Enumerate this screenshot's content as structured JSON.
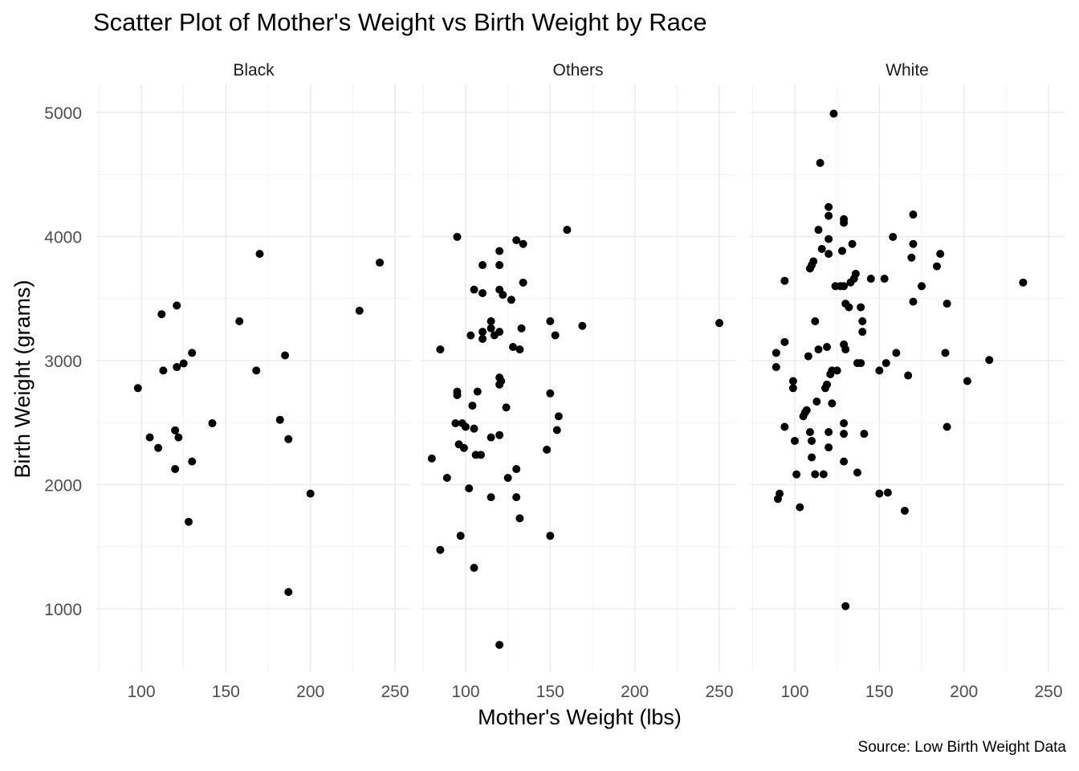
{
  "chart_data": {
    "type": "scatter",
    "title": "Scatter Plot of Mother's Weight vs Birth Weight by Race",
    "xlabel": "Mother's Weight (lbs)",
    "ylabel": "Birth Weight (grams)",
    "caption": "Source: Low Birth Weight Data",
    "xlim": [
      72,
      260
    ],
    "ylim": [
      500,
      5200
    ],
    "xticks": [
      100,
      150,
      200,
      250
    ],
    "yticks": [
      1000,
      2000,
      3000,
      4000,
      5000
    ],
    "grid": true,
    "point_color": "#000000",
    "facets": [
      {
        "name": "Black",
        "points": [
          [
            98,
            2778
          ],
          [
            105,
            2381
          ],
          [
            110,
            2296
          ],
          [
            112,
            3374
          ],
          [
            113,
            2920
          ],
          [
            120,
            2126
          ],
          [
            120,
            2438
          ],
          [
            121,
            2948
          ],
          [
            121,
            3444
          ],
          [
            122,
            2381
          ],
          [
            125,
            2977
          ],
          [
            128,
            1701
          ],
          [
            130,
            3062
          ],
          [
            130,
            2187
          ],
          [
            142,
            2495
          ],
          [
            158,
            3317
          ],
          [
            168,
            2920
          ],
          [
            170,
            3860
          ],
          [
            182,
            2523
          ],
          [
            185,
            3042
          ],
          [
            187,
            2367
          ],
          [
            187,
            1135
          ],
          [
            200,
            1928
          ],
          [
            229,
            3402
          ],
          [
            241,
            3790
          ]
        ]
      },
      {
        "name": "Others",
        "points": [
          [
            80,
            2211
          ],
          [
            85,
            3090
          ],
          [
            85,
            1474
          ],
          [
            89,
            2055
          ],
          [
            94,
            2495
          ],
          [
            95,
            2750
          ],
          [
            95,
            2722
          ],
          [
            95,
            3997
          ],
          [
            96,
            2325
          ],
          [
            97,
            1588
          ],
          [
            98,
            2495
          ],
          [
            99,
            2296
          ],
          [
            100,
            2466
          ],
          [
            102,
            1970
          ],
          [
            103,
            3203
          ],
          [
            104,
            2637
          ],
          [
            105,
            2452
          ],
          [
            105,
            3572
          ],
          [
            105,
            1330
          ],
          [
            106,
            2240
          ],
          [
            107,
            2750
          ],
          [
            109,
            2240
          ],
          [
            110,
            3770
          ],
          [
            110,
            3544
          ],
          [
            110,
            3175
          ],
          [
            110,
            3232
          ],
          [
            115,
            3317
          ],
          [
            115,
            3260
          ],
          [
            115,
            2381
          ],
          [
            115,
            1899
          ],
          [
            117,
            3204
          ],
          [
            120,
            3883
          ],
          [
            120,
            3770
          ],
          [
            120,
            3572
          ],
          [
            120,
            3232
          ],
          [
            120,
            2863
          ],
          [
            120,
            2807
          ],
          [
            120,
            2400
          ],
          [
            120,
            709
          ],
          [
            121,
            2835
          ],
          [
            122,
            3530
          ],
          [
            124,
            2622
          ],
          [
            125,
            2055
          ],
          [
            127,
            3490
          ],
          [
            128,
            3110
          ],
          [
            130,
            3970
          ],
          [
            130,
            2126
          ],
          [
            130,
            1899
          ],
          [
            132,
            3090
          ],
          [
            132,
            1729
          ],
          [
            133,
            3260
          ],
          [
            134,
            3940
          ],
          [
            134,
            3629
          ],
          [
            148,
            2282
          ],
          [
            150,
            3317
          ],
          [
            150,
            2736
          ],
          [
            150,
            1588
          ],
          [
            153,
            3204
          ],
          [
            154,
            2440
          ],
          [
            155,
            2551
          ],
          [
            160,
            4054
          ],
          [
            169,
            3280
          ],
          [
            250,
            3303
          ]
        ]
      },
      {
        "name": "White",
        "points": [
          [
            89,
            3062
          ],
          [
            89,
            2948
          ],
          [
            90,
            1885
          ],
          [
            91,
            1928
          ],
          [
            94,
            3643
          ],
          [
            94,
            3150
          ],
          [
            94,
            2466
          ],
          [
            99,
            2835
          ],
          [
            99,
            2778
          ],
          [
            100,
            2353
          ],
          [
            101,
            2083
          ],
          [
            103,
            1818
          ],
          [
            105,
            2551
          ],
          [
            106,
            2580
          ],
          [
            107,
            2600
          ],
          [
            108,
            3035
          ],
          [
            109,
            3742
          ],
          [
            109,
            2424
          ],
          [
            110,
            3770
          ],
          [
            110,
            2353
          ],
          [
            110,
            2220
          ],
          [
            111,
            3800
          ],
          [
            112,
            3317
          ],
          [
            112,
            2084
          ],
          [
            113,
            2670
          ],
          [
            114,
            3090
          ],
          [
            114,
            4054
          ],
          [
            115,
            4593
          ],
          [
            116,
            3900
          ],
          [
            117,
            2084
          ],
          [
            118,
            2778
          ],
          [
            119,
            2807
          ],
          [
            119,
            3110
          ],
          [
            120,
            4238
          ],
          [
            120,
            4167
          ],
          [
            120,
            3980
          ],
          [
            120,
            3860
          ],
          [
            120,
            2300
          ],
          [
            120,
            2424
          ],
          [
            121,
            2890
          ],
          [
            122,
            2920
          ],
          [
            122,
            2655
          ],
          [
            123,
            4990
          ],
          [
            124,
            3600
          ],
          [
            125,
            2920
          ],
          [
            127,
            3600
          ],
          [
            128,
            3884
          ],
          [
            129,
            4111
          ],
          [
            129,
            4140
          ],
          [
            129,
            3600
          ],
          [
            129,
            3130
          ],
          [
            129,
            2495
          ],
          [
            129,
            2410
          ],
          [
            129,
            2187
          ],
          [
            130,
            1021
          ],
          [
            130,
            3459
          ],
          [
            130,
            3090
          ],
          [
            132,
            3430
          ],
          [
            133,
            3630
          ],
          [
            134,
            3940
          ],
          [
            135,
            3660
          ],
          [
            136,
            3700
          ],
          [
            137,
            2980
          ],
          [
            137,
            2098
          ],
          [
            139,
            2980
          ],
          [
            139,
            3430
          ],
          [
            140,
            3317
          ],
          [
            140,
            3232
          ],
          [
            141,
            2410
          ],
          [
            145,
            3660
          ],
          [
            150,
            2920
          ],
          [
            150,
            1928
          ],
          [
            153,
            3660
          ],
          [
            154,
            2980
          ],
          [
            155,
            1936
          ],
          [
            158,
            3997
          ],
          [
            160,
            3062
          ],
          [
            165,
            1790
          ],
          [
            167,
            2880
          ],
          [
            169,
            3830
          ],
          [
            170,
            4177
          ],
          [
            170,
            3940
          ],
          [
            170,
            3475
          ],
          [
            175,
            3600
          ],
          [
            184,
            3760
          ],
          [
            186,
            3860
          ],
          [
            189,
            3062
          ],
          [
            190,
            3459
          ],
          [
            190,
            2466
          ],
          [
            202,
            2835
          ],
          [
            215,
            3005
          ],
          [
            235,
            3629
          ]
        ]
      }
    ]
  }
}
